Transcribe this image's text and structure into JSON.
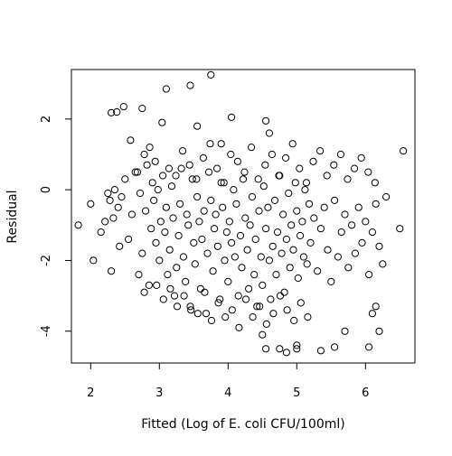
{
  "chart_data": {
    "type": "scatter",
    "title": "",
    "xlabel": "Fitted (Log of E. coli CFU/100ml)",
    "ylabel": "Residual",
    "xlim": [
      1.72,
      6.72
    ],
    "ylim": [
      -4.9,
      3.4
    ],
    "xticks": [
      2,
      3,
      4,
      5,
      6
    ],
    "yticks": [
      -4,
      -2,
      0,
      2
    ],
    "x_tick_labels": [
      "2",
      "3",
      "4",
      "5",
      "6"
    ],
    "y_tick_labels": [
      "-4",
      "-2",
      "0",
      "2"
    ],
    "grid": false,
    "legend": "none",
    "marker": "open-circle",
    "colors": {
      "points": "#000000",
      "axes": "#000000",
      "background": "#ffffff"
    },
    "series": [
      {
        "x": [
          1.82,
          2.0,
          2.04,
          2.15,
          2.21,
          2.28,
          2.3,
          2.33,
          2.35,
          2.4,
          2.42,
          2.45,
          2.5,
          2.55,
          2.6,
          2.65,
          2.7,
          2.72,
          2.75,
          2.8,
          2.82,
          2.85,
          2.88,
          2.9,
          2.92,
          2.95,
          2.98,
          3.0,
          3.02,
          3.05,
          3.08,
          3.1,
          3.12,
          3.15,
          3.18,
          3.2,
          3.22,
          3.25,
          3.28,
          3.3,
          3.32,
          3.35,
          3.38,
          3.4,
          3.42,
          3.45,
          3.48,
          3.5,
          3.52,
          3.55,
          3.58,
          3.6,
          3.62,
          3.65,
          3.68,
          3.7,
          3.72,
          3.75,
          3.78,
          3.8,
          3.82,
          3.85,
          3.88,
          3.9,
          3.92,
          3.95,
          3.98,
          4.0,
          4.02,
          4.05,
          4.08,
          4.1,
          4.12,
          4.15,
          4.18,
          4.2,
          4.22,
          4.25,
          4.28,
          4.3,
          4.32,
          4.35,
          4.38,
          4.4,
          4.42,
          4.45,
          4.48,
          4.5,
          4.52,
          4.55,
          4.58,
          4.6,
          4.62,
          4.65,
          4.68,
          4.7,
          4.72,
          4.75,
          4.78,
          4.8,
          4.82,
          4.85,
          4.88,
          4.9,
          4.92,
          4.95,
          4.98,
          5.0,
          5.02,
          5.05,
          5.08,
          5.1,
          5.12,
          5.15,
          5.18,
          5.2,
          5.25,
          5.3,
          5.35,
          5.4,
          5.45,
          5.5,
          5.55,
          5.6,
          5.65,
          5.7,
          5.75,
          5.8,
          5.85,
          5.9,
          5.95,
          6.0,
          6.05,
          6.1,
          6.15,
          6.2,
          6.25,
          6.3,
          6.5,
          6.55,
          2.25,
          2.38,
          2.48,
          2.58,
          2.68,
          2.78,
          2.86,
          2.94,
          3.04,
          3.14,
          3.24,
          3.34,
          3.44,
          3.54,
          3.64,
          3.74,
          3.84,
          3.94,
          4.04,
          4.14,
          4.24,
          4.34,
          4.44,
          4.54,
          4.64,
          4.74,
          4.84,
          4.94,
          5.04,
          5.14,
          5.24,
          5.34,
          5.44,
          5.54,
          5.64,
          5.74,
          5.84,
          5.94,
          6.04,
          6.14,
          2.78,
          2.96,
          3.06,
          3.16,
          3.26,
          3.36,
          3.46,
          3.56,
          3.66,
          3.76,
          3.86,
          3.96,
          4.06,
          4.16,
          4.26,
          4.36,
          4.46,
          4.56,
          4.66,
          4.76,
          4.86,
          4.96,
          5.06,
          5.16,
          3.1,
          3.45,
          3.75,
          4.05,
          4.55,
          4.6,
          2.3,
          2.75,
          3.55,
          3.9,
          4.75,
          5.0,
          5.35,
          5.55,
          5.7,
          6.05,
          6.1,
          6.15,
          6.2,
          4.5,
          4.55,
          4.85,
          5.0
        ],
        "y": [
          -1.0,
          -0.4,
          -2.0,
          -1.2,
          -0.9,
          -0.3,
          -2.3,
          -0.8,
          0.0,
          -0.5,
          -1.6,
          -0.2,
          0.3,
          -1.4,
          -0.7,
          0.5,
          -2.4,
          -0.1,
          -1.8,
          -0.6,
          0.7,
          -2.7,
          -1.1,
          0.2,
          -0.3,
          -1.5,
          0.0,
          -2.0,
          -0.9,
          0.4,
          -1.2,
          -0.5,
          -2.4,
          -1.7,
          0.1,
          -0.8,
          -3.0,
          -2.2,
          -1.3,
          -0.4,
          0.6,
          -1.9,
          -2.6,
          -0.7,
          -1.0,
          -3.3,
          0.3,
          -1.5,
          -2.1,
          -0.2,
          -0.9,
          -2.8,
          -1.4,
          -0.6,
          -3.5,
          -1.8,
          0.5,
          -0.3,
          -2.3,
          -1.1,
          -0.7,
          -1.6,
          -3.1,
          0.2,
          -0.5,
          -2.0,
          -1.2,
          -2.6,
          -0.9,
          -1.5,
          0.0,
          -1.9,
          -0.4,
          -3.0,
          -1.3,
          -2.2,
          0.3,
          -0.8,
          -1.7,
          -2.8,
          -1.0,
          -0.2,
          -2.4,
          -1.4,
          -3.3,
          -0.6,
          -1.9,
          -2.7,
          0.1,
          -1.1,
          -0.5,
          -2.0,
          -3.1,
          -1.6,
          -0.3,
          -2.4,
          -1.2,
          0.4,
          -1.8,
          -0.7,
          -2.9,
          -1.4,
          -0.1,
          -2.2,
          -1.0,
          -1.7,
          0.2,
          -0.6,
          -2.5,
          -1.3,
          -0.9,
          -1.9,
          0.0,
          -2.1,
          -0.4,
          -1.5,
          -0.8,
          -2.3,
          -1.1,
          -0.5,
          -1.7,
          -2.6,
          -0.3,
          -1.9,
          -1.2,
          -0.7,
          -2.2,
          -1.0,
          -1.8,
          -0.5,
          -1.5,
          -0.9,
          -2.4,
          -1.2,
          -0.4,
          -1.6,
          -2.1,
          -0.2,
          -1.1,
          1.1,
          -0.1,
          2.2,
          2.35,
          1.4,
          0.5,
          1.0,
          1.2,
          0.8,
          1.9,
          0.6,
          0.4,
          1.1,
          0.7,
          0.3,
          0.9,
          1.3,
          0.6,
          0.2,
          1.0,
          0.8,
          0.5,
          1.2,
          0.3,
          0.7,
          1.0,
          0.4,
          0.9,
          1.3,
          0.6,
          0.2,
          0.8,
          1.1,
          0.4,
          0.7,
          1.0,
          0.3,
          0.6,
          0.9,
          0.5,
          0.2,
          -2.9,
          -2.7,
          -3.1,
          -2.8,
          -3.3,
          -3.0,
          -3.4,
          -3.5,
          -2.9,
          -3.7,
          -3.2,
          -3.6,
          -3.4,
          -3.9,
          -3.1,
          -3.6,
          -3.3,
          -3.8,
          -3.5,
          -3.0,
          -3.4,
          -3.7,
          -3.2,
          -3.6,
          2.85,
          2.95,
          3.25,
          2.05,
          1.95,
          1.6,
          2.18,
          2.3,
          1.8,
          1.3,
          -4.5,
          -4.5,
          -4.55,
          -4.45,
          -4.0,
          -4.45,
          -3.5,
          -3.3,
          -4.0,
          -4.1,
          -4.5,
          -4.6,
          -4.4
        ]
      }
    ]
  }
}
